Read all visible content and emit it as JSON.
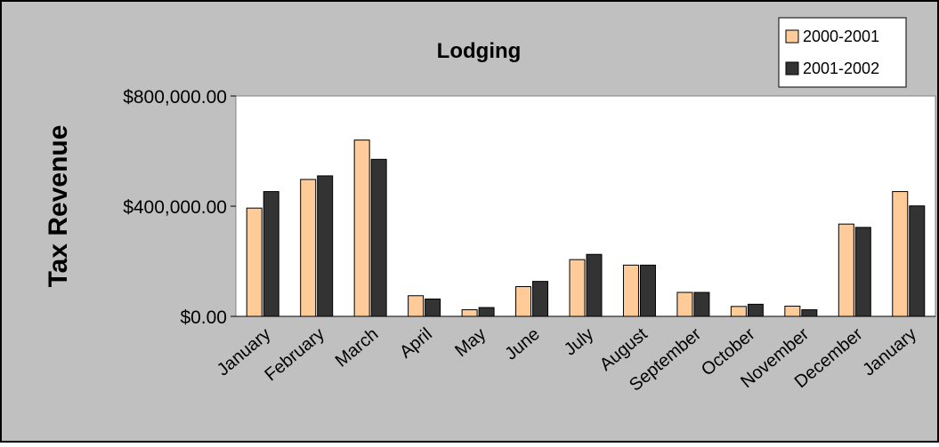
{
  "chart_data": {
    "type": "bar",
    "title": "Lodging",
    "ylabel": "Tax Revenue",
    "xlabel": "",
    "ylim": [
      0,
      800000
    ],
    "y_ticks": [
      "$0.00",
      "$400,000.00",
      "$800,000.00"
    ],
    "y_tick_values": [
      0,
      400000,
      800000
    ],
    "categories": [
      "January",
      "February",
      "March",
      "April",
      "May",
      "June",
      "July",
      "August",
      "September",
      "October",
      "November",
      "December",
      "January"
    ],
    "series": [
      {
        "name": "2000-2001",
        "color": "#FFCC99",
        "values": [
          393000,
          497000,
          640000,
          75000,
          24000,
          108000,
          206000,
          186000,
          87000,
          36000,
          37000,
          335000,
          453000
        ]
      },
      {
        "name": "2001-2002",
        "color": "#333333",
        "values": [
          453000,
          510000,
          570000,
          63000,
          32000,
          127000,
          225000,
          186000,
          87000,
          44000,
          24000,
          323000,
          401000
        ]
      }
    ],
    "grid": false,
    "legend": "top-right",
    "plot_background": "#ffffff",
    "chart_background": "#c0c0c0"
  }
}
